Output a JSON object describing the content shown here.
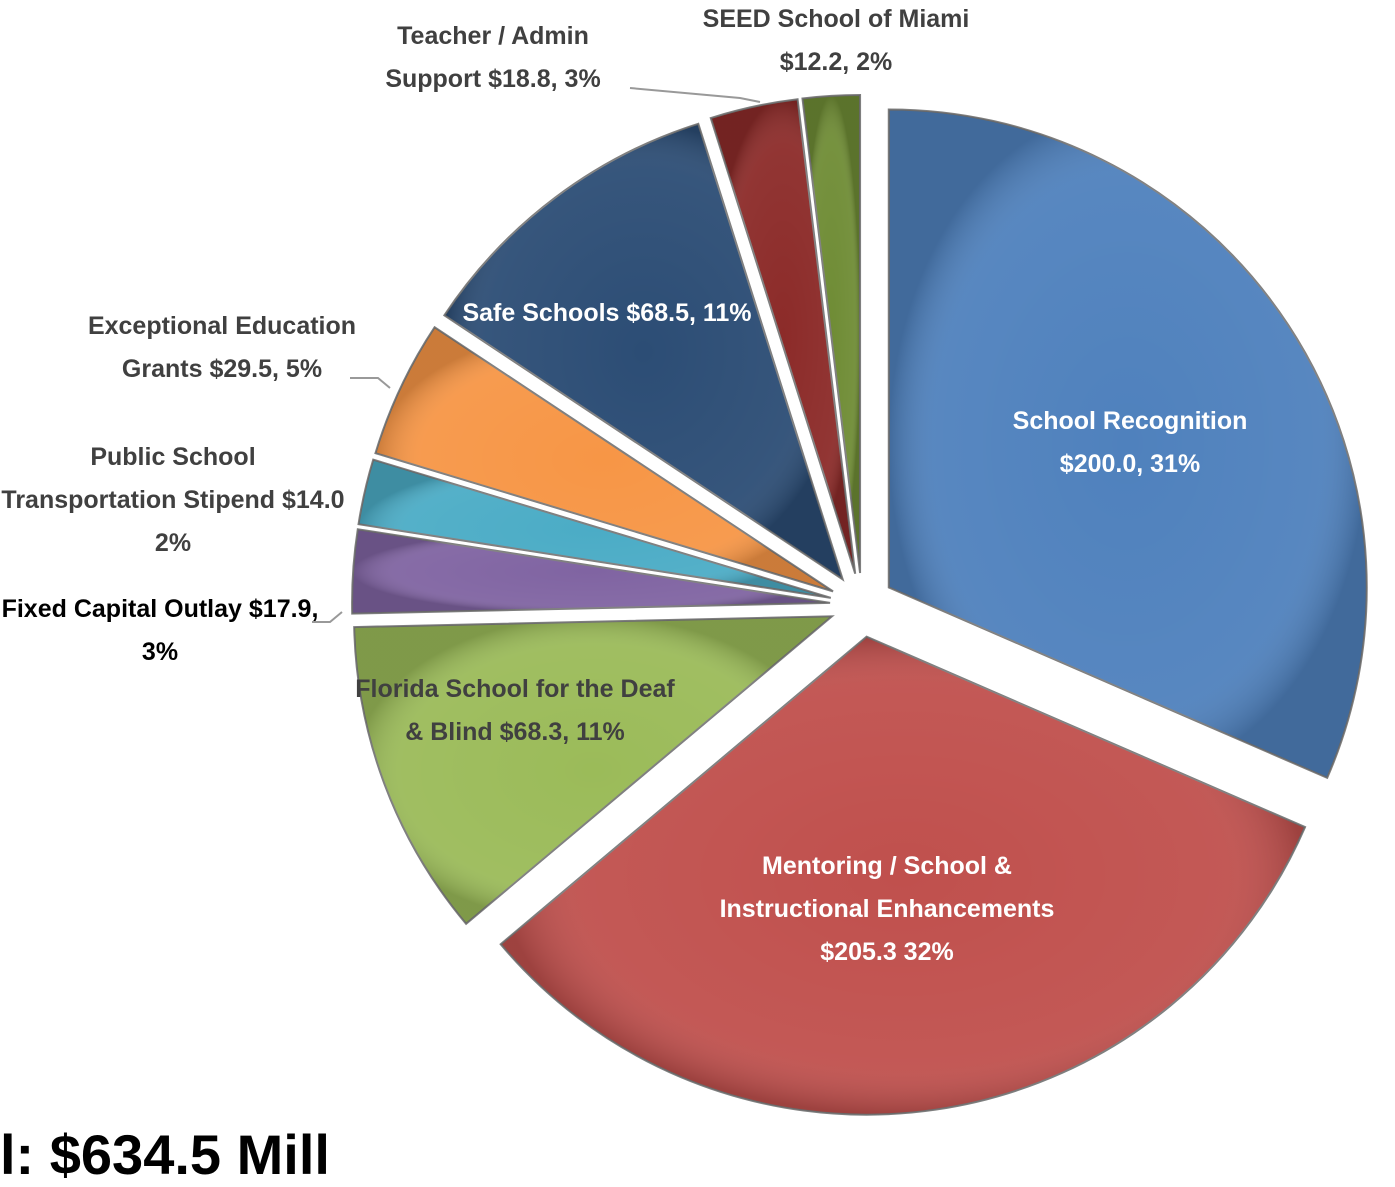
{
  "chart_data": {
    "type": "pie",
    "categories": [
      "School Recognition",
      "Mentoring / School & Instructional Enhancements",
      "Florida School for the Deaf & Blind",
      "Fixed Capital Outlay",
      "Public School Transportation Stipend",
      "Exceptional Education Grants",
      "Safe Schools",
      "Teacher / Admin Support",
      "SEED School of Miami"
    ],
    "values": [
      200.0,
      205.3,
      68.3,
      17.9,
      14.0,
      29.5,
      68.5,
      18.8,
      12.2
    ],
    "value_labels": [
      "$200.0, 31%",
      "$205.3 32%",
      "$68.3, 11%",
      "$17.9, 3%",
      "$14.0 2%",
      "$29.5, 5%",
      "$68.5, 11%",
      "$18.8, 3%",
      "$12.2, 2%"
    ],
    "colors": [
      "#4f81bd",
      "#c0504d",
      "#9bbb59",
      "#8064a2",
      "#4bacc6",
      "#f79646",
      "#2c4d75",
      "#8c2b29",
      "#6f8c35"
    ],
    "footer": "l: $634.5 Mill"
  }
}
